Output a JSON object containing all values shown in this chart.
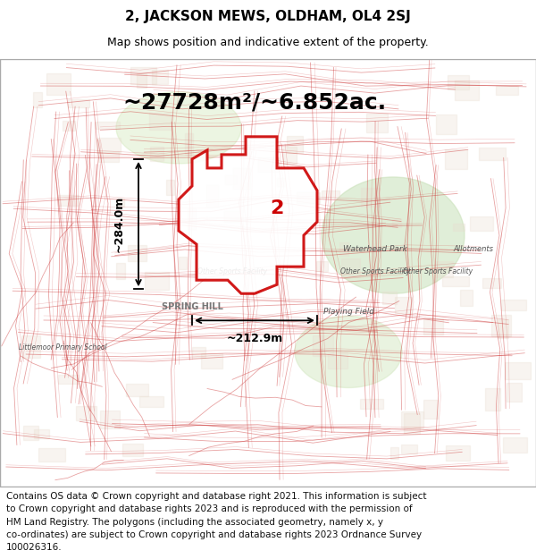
{
  "title_line1": "2, JACKSON MEWS, OLDHAM, OL4 2SJ",
  "title_line2": "Map shows position and indicative extent of the property.",
  "area_text": "~27728m²/~6.852ac.",
  "dim1_label": "~284.0m",
  "dim2_label": "~212.9m",
  "property_number": "2",
  "footer_lines": [
    "Contains OS data © Crown copyright and database right 2021. This information is subject",
    "to Crown copyright and database rights 2023 and is reproduced with the permission of",
    "HM Land Registry. The polygons (including the associated geometry, namely x, y",
    "co-ordinates) are subject to Crown copyright and database rights 2023 Ordnance Survey",
    "100026316."
  ],
  "map_bg": "#f2ede8",
  "title_fontsize": 11,
  "subtitle_fontsize": 9,
  "area_fontsize": 18,
  "footer_fontsize": 7.5,
  "polygon_color": "#cc0000",
  "title_color": "#000000",
  "street_color": "#cc3333",
  "street_alpha": 0.45,
  "park_color1": "#d4e8c2",
  "park_color2": "#c8e0b8",
  "park_color3": "#d0e8b8"
}
